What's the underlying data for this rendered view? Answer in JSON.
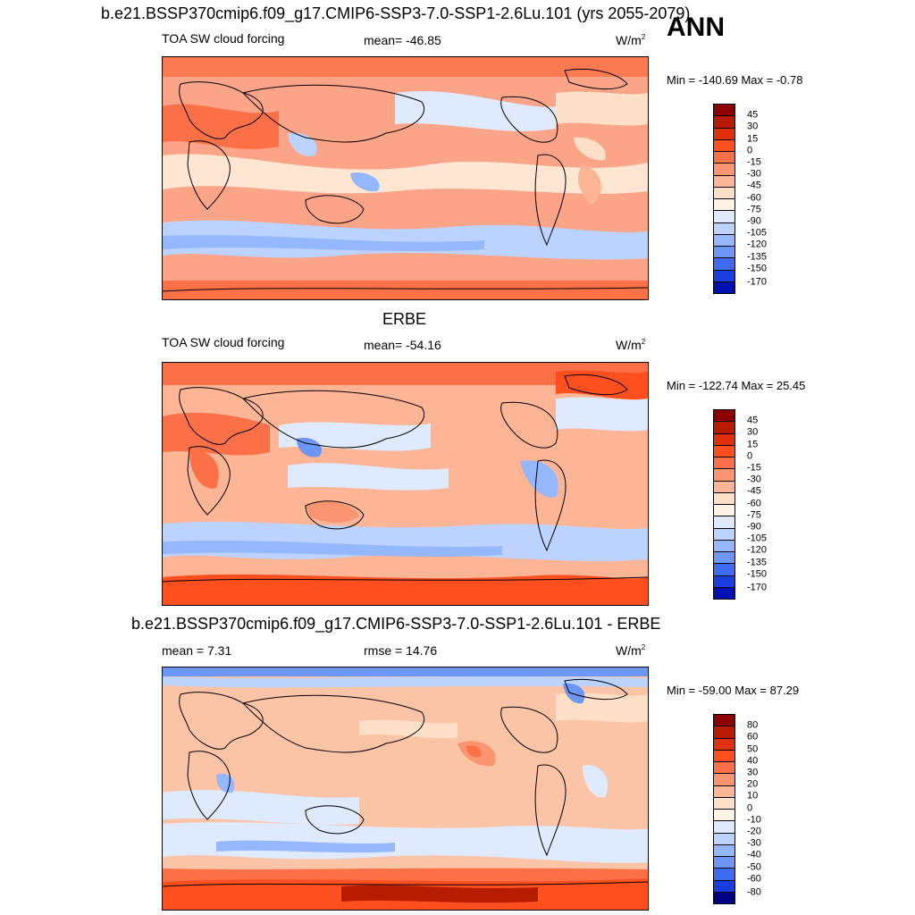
{
  "season": "ANN",
  "panels": [
    {
      "title": "b.e21.BSSP370cmip6.f09_g17.CMIP6-SSP3-7.0-SSP1-2.6Lu.101 (yrs 2055-2079)",
      "left_label": "TOA SW cloud forcing",
      "center_label": "mean= -46.85",
      "units": "W/m",
      "units_exp": "2",
      "minmax": "Min = -140.69 Max =  -0.78",
      "levels": [
        "45",
        "30",
        "15",
        "0",
        "-15",
        "-30",
        "-45",
        "-60",
        "-75",
        "-90",
        "-105",
        "-120",
        "-135",
        "-150",
        "-170"
      ],
      "colors": [
        "#8b0000",
        "#b71c00",
        "#e03010",
        "#ff4f1f",
        "#fc7048",
        "#fb9470",
        "#fdb596",
        "#fee0c9",
        "#fff3e6",
        "#dfeaff",
        "#bcd3ff",
        "#94b7fd",
        "#6d97f7",
        "#3f6bf0",
        "#1b3ee0",
        "#0010b0",
        "#000080"
      ]
    },
    {
      "title": "ERBE",
      "left_label": "TOA SW cloud forcing",
      "center_label": "mean= -54.16",
      "units": "W/m",
      "units_exp": "2",
      "minmax": "Min = -122.74 Max =  25.45",
      "levels": [
        "45",
        "30",
        "15",
        "0",
        "-15",
        "-30",
        "-45",
        "-60",
        "-75",
        "-90",
        "-105",
        "-120",
        "-135",
        "-150",
        "-170"
      ],
      "colors": [
        "#8b0000",
        "#b71c00",
        "#e03010",
        "#ff4f1f",
        "#fc7048",
        "#fb9470",
        "#fdb596",
        "#fee0c9",
        "#fff3e6",
        "#dfeaff",
        "#bcd3ff",
        "#94b7fd",
        "#6d97f7",
        "#3f6bf0",
        "#1b3ee0",
        "#0010b0",
        "#000080"
      ]
    },
    {
      "title": "b.e21.BSSP370cmip6.f09_g17.CMIP6-SSP3-7.0-SSP1-2.6Lu.101 - ERBE",
      "left_label": "mean =   7.31",
      "center_label": "rmse =  14.76",
      "units": "W/m",
      "units_exp": "2",
      "minmax": "Min = -59.00 Max =  87.29",
      "levels": [
        "80",
        "60",
        "50",
        "40",
        "30",
        "20",
        "10",
        "0",
        "-10",
        "-20",
        "-30",
        "-40",
        "-50",
        "-60",
        "-80"
      ],
      "colors": [
        "#8b0000",
        "#b71c00",
        "#e03010",
        "#ff4f1f",
        "#fc7048",
        "#fb9470",
        "#fdb596",
        "#fee0c9",
        "#fff3e6",
        "#dfeaff",
        "#bcd3ff",
        "#94b7fd",
        "#6d97f7",
        "#3f6bf0",
        "#1b3ee0",
        "#000080"
      ]
    }
  ]
}
